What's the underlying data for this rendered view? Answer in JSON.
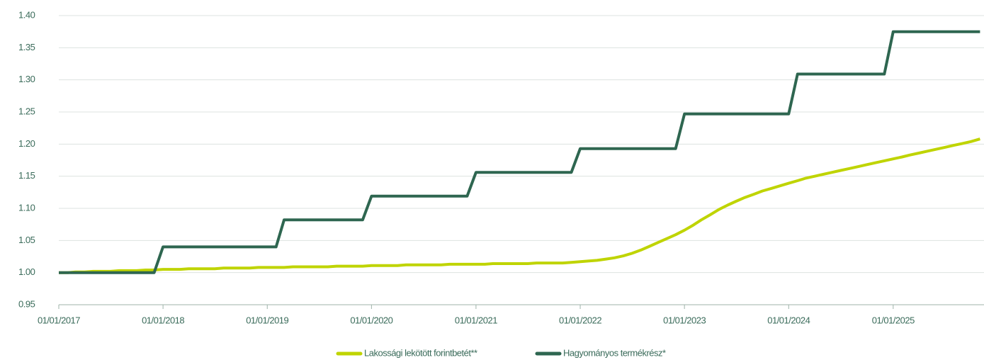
{
  "chart_data": {
    "type": "line",
    "x": [
      "2017-01-01",
      "2017-02-01",
      "2017-03-01",
      "2017-04-01",
      "2017-05-01",
      "2017-06-01",
      "2017-07-01",
      "2017-08-01",
      "2017-09-01",
      "2017-10-01",
      "2017-11-01",
      "2017-12-01",
      "2018-01-01",
      "2018-02-01",
      "2018-03-01",
      "2018-04-01",
      "2018-05-01",
      "2018-06-01",
      "2018-07-01",
      "2018-08-01",
      "2018-09-01",
      "2018-10-01",
      "2018-11-01",
      "2018-12-01",
      "2019-01-01",
      "2019-02-01",
      "2019-03-01",
      "2019-04-01",
      "2019-05-01",
      "2019-06-01",
      "2019-07-01",
      "2019-08-01",
      "2019-09-01",
      "2019-10-01",
      "2019-11-01",
      "2019-12-01",
      "2020-01-01",
      "2020-02-01",
      "2020-03-01",
      "2020-04-01",
      "2020-05-01",
      "2020-06-01",
      "2020-07-01",
      "2020-08-01",
      "2020-09-01",
      "2020-10-01",
      "2020-11-01",
      "2020-12-01",
      "2021-01-01",
      "2021-02-01",
      "2021-03-01",
      "2021-04-01",
      "2021-05-01",
      "2021-06-01",
      "2021-07-01",
      "2021-08-01",
      "2021-09-01",
      "2021-10-01",
      "2021-11-01",
      "2021-12-01",
      "2022-01-01",
      "2022-02-01",
      "2022-03-01",
      "2022-04-01",
      "2022-05-01",
      "2022-06-01",
      "2022-07-01",
      "2022-08-01",
      "2022-09-01",
      "2022-10-01",
      "2022-11-01",
      "2022-12-01",
      "2023-01-01",
      "2023-02-01",
      "2023-03-01",
      "2023-04-01",
      "2023-05-01",
      "2023-06-01",
      "2023-07-01",
      "2023-08-01",
      "2023-09-01",
      "2023-10-01",
      "2023-11-01",
      "2023-12-01",
      "2024-01-01",
      "2024-02-01",
      "2024-03-01",
      "2024-04-01",
      "2024-05-01",
      "2024-06-01",
      "2024-07-01",
      "2024-08-01",
      "2024-09-01",
      "2024-10-01",
      "2024-11-01",
      "2024-12-01",
      "2025-01-01",
      "2025-02-01",
      "2025-03-01",
      "2025-04-01",
      "2025-05-01",
      "2025-06-01",
      "2025-07-01",
      "2025-08-01",
      "2025-09-01",
      "2025-10-01",
      "2025-11-01"
    ],
    "series": [
      {
        "name": "Lakossági lekötött forintbetét**",
        "color": "#bfd400",
        "values": [
          1.0,
          1.0,
          1.001,
          1.001,
          1.002,
          1.002,
          1.002,
          1.003,
          1.003,
          1.003,
          1.004,
          1.004,
          1.005,
          1.005,
          1.005,
          1.006,
          1.006,
          1.006,
          1.006,
          1.007,
          1.007,
          1.007,
          1.007,
          1.008,
          1.008,
          1.008,
          1.008,
          1.009,
          1.009,
          1.009,
          1.009,
          1.009,
          1.01,
          1.01,
          1.01,
          1.01,
          1.011,
          1.011,
          1.011,
          1.011,
          1.012,
          1.012,
          1.012,
          1.012,
          1.012,
          1.013,
          1.013,
          1.013,
          1.013,
          1.013,
          1.014,
          1.014,
          1.014,
          1.014,
          1.014,
          1.015,
          1.015,
          1.015,
          1.015,
          1.016,
          1.017,
          1.018,
          1.019,
          1.021,
          1.023,
          1.026,
          1.03,
          1.035,
          1.041,
          1.047,
          1.053,
          1.059,
          1.066,
          1.074,
          1.082,
          1.09,
          1.098,
          1.105,
          1.111,
          1.117,
          1.122,
          1.127,
          1.131,
          1.135,
          1.139,
          1.143,
          1.147,
          1.15,
          1.153,
          1.156,
          1.159,
          1.162,
          1.165,
          1.168,
          1.171,
          1.174,
          1.177,
          1.18,
          1.183,
          1.186,
          1.189,
          1.192,
          1.195,
          1.198,
          1.201,
          1.204,
          1.208
        ]
      },
      {
        "name": "Hagyományos termékrész*",
        "color": "#2e6650",
        "values": [
          1.0,
          1.0,
          1.0,
          1.0,
          1.0,
          1.0,
          1.0,
          1.0,
          1.0,
          1.0,
          1.0,
          1.0,
          1.04,
          1.04,
          1.04,
          1.04,
          1.04,
          1.04,
          1.04,
          1.04,
          1.04,
          1.04,
          1.04,
          1.04,
          1.04,
          1.04,
          1.082,
          1.082,
          1.082,
          1.082,
          1.082,
          1.082,
          1.082,
          1.082,
          1.082,
          1.082,
          1.119,
          1.119,
          1.119,
          1.119,
          1.119,
          1.119,
          1.119,
          1.119,
          1.119,
          1.119,
          1.119,
          1.119,
          1.156,
          1.156,
          1.156,
          1.156,
          1.156,
          1.156,
          1.156,
          1.156,
          1.156,
          1.156,
          1.156,
          1.156,
          1.193,
          1.193,
          1.193,
          1.193,
          1.193,
          1.193,
          1.193,
          1.193,
          1.193,
          1.193,
          1.193,
          1.193,
          1.247,
          1.247,
          1.247,
          1.247,
          1.247,
          1.247,
          1.247,
          1.247,
          1.247,
          1.247,
          1.247,
          1.247,
          1.247,
          1.309,
          1.309,
          1.309,
          1.309,
          1.309,
          1.309,
          1.309,
          1.309,
          1.309,
          1.309,
          1.309,
          1.375,
          1.375,
          1.375,
          1.375,
          1.375,
          1.375,
          1.375,
          1.375,
          1.375,
          1.375,
          1.375
        ]
      }
    ],
    "xlim": [
      "2017-01-01",
      "2025-11-15"
    ],
    "xticks": [
      {
        "value": "2017-01-01",
        "label": "01/01/2017"
      },
      {
        "value": "2018-01-01",
        "label": "01/01/2018"
      },
      {
        "value": "2019-01-01",
        "label": "01/01/2019"
      },
      {
        "value": "2020-01-01",
        "label": "01/01/2020"
      },
      {
        "value": "2021-01-01",
        "label": "01/01/2021"
      },
      {
        "value": "2022-01-01",
        "label": "01/01/2022"
      },
      {
        "value": "2023-01-01",
        "label": "01/01/2023"
      },
      {
        "value": "2024-01-01",
        "label": "01/01/2024"
      },
      {
        "value": "2025-01-01",
        "label": "01/01/2025"
      }
    ],
    "ylim": [
      0.95,
      1.4
    ],
    "yticks": [
      {
        "value": 0.95,
        "label": "0.95"
      },
      {
        "value": 1.0,
        "label": "1.00"
      },
      {
        "value": 1.05,
        "label": "1.05"
      },
      {
        "value": 1.1,
        "label": "1.10"
      },
      {
        "value": 1.15,
        "label": "1.15"
      },
      {
        "value": 1.2,
        "label": "1.20"
      },
      {
        "value": 1.25,
        "label": "1.25"
      },
      {
        "value": 1.3,
        "label": "1.30"
      },
      {
        "value": 1.35,
        "label": "1.35"
      },
      {
        "value": 1.4,
        "label": "1.40"
      }
    ],
    "grid": true,
    "legend": "bottom"
  }
}
